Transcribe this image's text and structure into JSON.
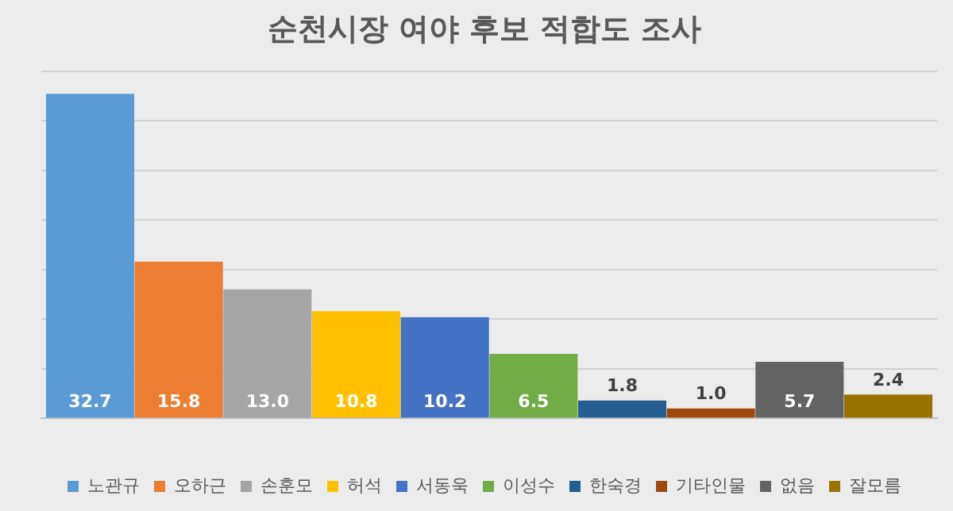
{
  "chart_data": {
    "type": "bar",
    "title": "순천시장 여야 후보 적합도 조사",
    "categories": [
      null
    ],
    "series": [
      {
        "name": "노관규",
        "color": "#5b9bd5",
        "values": [
          32.7
        ],
        "value_labels": [
          "32.7"
        ]
      },
      {
        "name": "오하근",
        "color": "#ed7d31",
        "values": [
          15.8
        ],
        "value_labels": [
          "15.8"
        ]
      },
      {
        "name": "손훈모",
        "color": "#a5a5a5",
        "values": [
          13.0
        ],
        "value_labels": [
          "13.0"
        ]
      },
      {
        "name": "허석",
        "color": "#ffc000",
        "values": [
          10.8
        ],
        "value_labels": [
          "10.8"
        ]
      },
      {
        "name": "서동욱",
        "color": "#4472c4",
        "values": [
          10.2
        ],
        "value_labels": [
          "10.2"
        ]
      },
      {
        "name": "이성수",
        "color": "#70ad47",
        "values": [
          6.5
        ],
        "value_labels": [
          "6.5"
        ]
      },
      {
        "name": "한숙경",
        "color": "#255e91",
        "values": [
          1.8
        ],
        "value_labels": [
          "1.8"
        ]
      },
      {
        "name": "기타인물",
        "color": "#9e480e",
        "values": [
          1.0
        ],
        "value_labels": [
          "1.0"
        ]
      },
      {
        "name": "없음",
        "color": "#636363",
        "values": [
          5.7
        ],
        "value_labels": [
          "5.7"
        ]
      },
      {
        "name": "잘모름",
        "color": "#997300",
        "values": [
          2.4
        ],
        "value_labels": [
          "2.4"
        ]
      }
    ],
    "ylim": [
      0,
      35
    ],
    "yticks": [
      {
        "value": 0,
        "label": null
      },
      {
        "value": 5,
        "label": null
      },
      {
        "value": 10,
        "label": null
      },
      {
        "value": 15,
        "label": null
      },
      {
        "value": 20,
        "label": null
      },
      {
        "value": 25,
        "label": null
      },
      {
        "value": 30,
        "label": null
      },
      {
        "value": 35,
        "label": null
      }
    ],
    "grid": "y",
    "legend": "bottom"
  }
}
